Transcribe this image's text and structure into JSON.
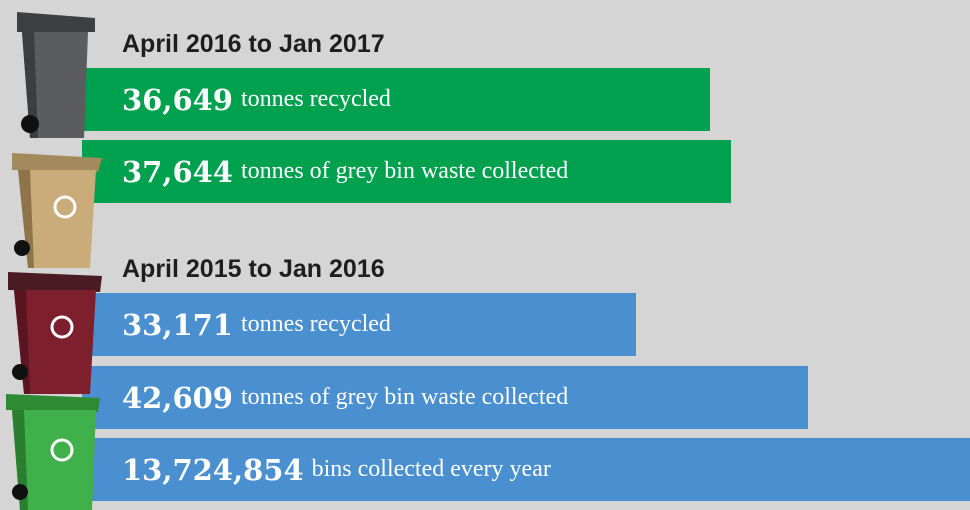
{
  "groups": [
    {
      "heading": "April 2016 to Jan 2017",
      "items": [
        {
          "number": "36,649",
          "text": "tonnes recycled"
        },
        {
          "number": "37,644",
          "text": "tonnes of grey bin waste collected"
        }
      ]
    },
    {
      "heading": "April 2015 to Jan 2016",
      "items": [
        {
          "number": "33,171",
          "text": "tonnes recycled"
        },
        {
          "number": "42,609",
          "text": "tonnes of grey bin waste collected"
        },
        {
          "number": "13,724,854",
          "text": "bins collected every year"
        }
      ]
    }
  ]
}
